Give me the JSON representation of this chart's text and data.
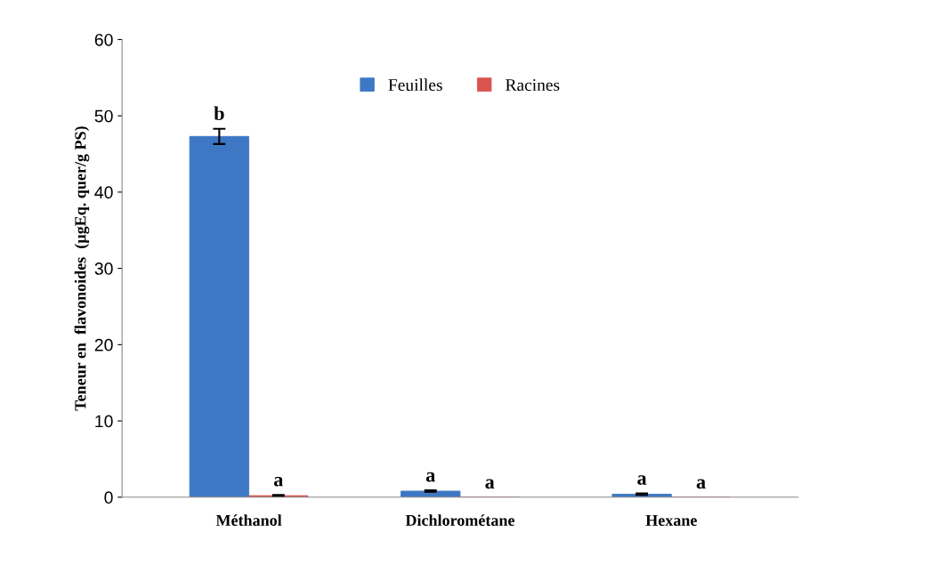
{
  "chart_data": {
    "type": "bar",
    "ylabel": "Teneur en  flavonoides  (µgEq. quer/g PS)",
    "categories": [
      "Méthanol",
      "Dichlorométane",
      "Hexane"
    ],
    "series": [
      {
        "name": "Feuilles",
        "color": "#3e78c4",
        "values": [
          47.3,
          0.8,
          0.4
        ],
        "errors": [
          1.0,
          0.1,
          0.1
        ],
        "value_labels": [
          "b",
          "a",
          "a"
        ]
      },
      {
        "name": "Racines",
        "color": "#d9534f",
        "values": [
          0.2,
          0,
          0
        ],
        "errors": [
          0.1,
          null,
          null
        ],
        "value_labels": [
          "a",
          "a",
          "a"
        ]
      }
    ],
    "ylim": [
      0,
      60
    ],
    "yticks": [
      0,
      10,
      20,
      30,
      40,
      50,
      60
    ],
    "grid": false,
    "legend": "top"
  }
}
